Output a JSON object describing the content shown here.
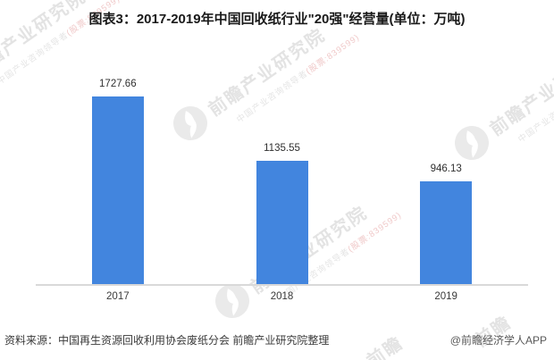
{
  "title": "图表3：2017-2019年中国回收纸行业\"20强\"经营量(单位：万吨)",
  "chart_data": {
    "type": "bar",
    "title": "2017-2019年中国回收纸行业\"20强\"经营量",
    "unit": "万吨",
    "categories": [
      "2017",
      "2018",
      "2019"
    ],
    "values": [
      1727.66,
      1135.55,
      946.13
    ],
    "value_labels": [
      "1727.66",
      "1135.55",
      "946.13"
    ],
    "xlabel": "",
    "ylabel": "",
    "ylim": [
      0,
      1750
    ],
    "grid": false,
    "legend": false,
    "bar_color": "#4285DE",
    "axis_line_color": "#D9D9D9",
    "label_color": "#303030"
  },
  "footer": {
    "source": "资料来源：中国再生资源回收利用协会废纸分会 前瞻产业研究院整理",
    "credit": "@前瞻经济学人APP"
  },
  "watermark": {
    "brand": "前瞻产业研究院",
    "tagline": "中国产业咨询领导者",
    "stock_code": "(股票:839599)",
    "brand_color": "#e3e3e3",
    "tagline_color": "#e5e5e5",
    "stock_color": "#f0c9c9",
    "logo_color": "#eaeaea"
  }
}
